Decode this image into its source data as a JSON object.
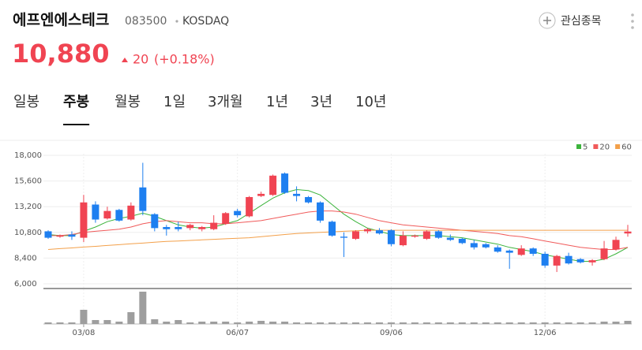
{
  "header": {
    "title": "에프엔에스테크",
    "code": "083500",
    "market": "KOSDAQ",
    "watch_button": "관심종목"
  },
  "price": {
    "value": "10,880",
    "change": "20",
    "change_pct": "(+0.18%)"
  },
  "tabs": [
    "일봉",
    "주봉",
    "월봉",
    "1일",
    "3개월",
    "1년",
    "3년",
    "10년"
  ],
  "active_tab": 1,
  "chart_data": {
    "type": "candlestick",
    "categories": [
      null,
      null,
      null,
      "03/08",
      null,
      null,
      null,
      null,
      null,
      null,
      null,
      null,
      null,
      null,
      null,
      null,
      "06/07",
      null,
      null,
      null,
      null,
      null,
      null,
      null,
      null,
      null,
      null,
      null,
      null,
      "09/06",
      null,
      null,
      null,
      null,
      null,
      null,
      null,
      null,
      null,
      null,
      null,
      null,
      "12/06",
      null,
      null,
      null,
      null,
      null,
      null,
      null
    ],
    "open": [
      10900,
      10400,
      10600,
      10300,
      13400,
      12100,
      12900,
      12000,
      15000,
      12500,
      11300,
      11300,
      11200,
      11100,
      11100,
      11600,
      12800,
      12300,
      14200,
      14300,
      16300,
      14400,
      14100,
      13600,
      11800,
      10400,
      10200,
      10900,
      11000,
      11000,
      9600,
      10400,
      10200,
      10900,
      10300,
      10200,
      9800,
      9700,
      9400,
      9100,
      8700,
      9300,
      8800,
      7700,
      8600,
      8300,
      8000,
      8300,
      9200,
      10700
    ],
    "close": [
      10300,
      10500,
      10400,
      13600,
      12000,
      12800,
      11900,
      13300,
      12800,
      11200,
      11100,
      11100,
      11500,
      11300,
      11700,
      12600,
      12400,
      14100,
      14400,
      16100,
      14500,
      14200,
      13600,
      11900,
      10500,
      10300,
      10900,
      11100,
      10700,
      9700,
      10500,
      10500,
      10900,
      10300,
      10100,
      9800,
      9400,
      9400,
      9000,
      8900,
      9300,
      8800,
      7700,
      8600,
      7900,
      8000,
      8200,
      9300,
      10100,
      10880
    ],
    "high": [
      11000,
      10600,
      10900,
      14300,
      13700,
      13200,
      13000,
      13600,
      17300,
      12600,
      11500,
      11800,
      11600,
      11400,
      12400,
      12700,
      13000,
      14200,
      14600,
      16200,
      16400,
      15100,
      14200,
      13700,
      11900,
      10800,
      11000,
      11200,
      11200,
      11100,
      10900,
      10600,
      11000,
      11000,
      10600,
      10300,
      10100,
      9800,
      9600,
      9200,
      9600,
      9400,
      9000,
      8700,
      8900,
      8400,
      8300,
      10000,
      10400,
      11500
    ],
    "low": [
      10200,
      10300,
      10100,
      9900,
      11700,
      12000,
      11800,
      11900,
      12400,
      10900,
      10500,
      10900,
      11000,
      10900,
      11000,
      11500,
      12200,
      12200,
      14100,
      14200,
      14400,
      13700,
      13500,
      11700,
      10400,
      8500,
      10100,
      10700,
      10600,
      9500,
      9500,
      10300,
      10100,
      10200,
      10000,
      9700,
      9200,
      9300,
      8900,
      7400,
      8600,
      8600,
      7500,
      7100,
      7800,
      7900,
      7700,
      8200,
      9100,
      10400
    ],
    "volume": {
      "color": "#9e9e9e",
      "values": [
        2,
        2,
        2,
        18,
        5,
        5,
        3,
        15,
        41,
        6,
        3,
        5,
        2,
        3,
        3,
        3,
        2,
        3,
        4,
        3,
        3,
        2,
        2,
        2,
        2,
        2,
        2,
        2,
        2,
        2,
        2,
        2,
        2,
        2,
        2,
        2,
        2,
        2,
        2,
        2,
        2,
        2,
        2,
        2,
        2,
        2,
        2,
        3,
        3,
        4
      ]
    },
    "up_color": "#f04452",
    "down_color": "#1e7ff0",
    "series": [
      {
        "name": "5",
        "color": "#3cb43c",
        "values": [
          10600,
          10500,
          10500,
          10900,
          11300,
          11800,
          12100,
          12300,
          12600,
          12300,
          11900,
          11500,
          11300,
          11200,
          11300,
          11600,
          11900,
          12600,
          13300,
          14000,
          14500,
          14800,
          14700,
          14300,
          13400,
          12500,
          11800,
          11200,
          10900,
          10600,
          10500,
          10500,
          10500,
          10500,
          10400,
          10300,
          10100,
          9900,
          9700,
          9400,
          9200,
          9000,
          8700,
          8500,
          8300,
          8100,
          8100,
          8300,
          8800,
          9400
        ]
      },
      {
        "name": "20",
        "color": "#f05a5a",
        "values": [
          10500,
          10500,
          10600,
          10800,
          10900,
          11000,
          11100,
          11300,
          11600,
          11800,
          11900,
          11800,
          11700,
          11700,
          11600,
          11600,
          11700,
          11800,
          11900,
          12100,
          12300,
          12500,
          12700,
          12800,
          12800,
          12700,
          12500,
          12200,
          11900,
          11700,
          11500,
          11400,
          11300,
          11200,
          11100,
          11000,
          10900,
          10800,
          10700,
          10500,
          10400,
          10200,
          10000,
          9800,
          9600,
          9400,
          9300,
          9200,
          9200,
          9400
        ]
      },
      {
        "name": "60",
        "color": "#f3a04a",
        "values": [
          9200,
          9280,
          9350,
          9430,
          9500,
          9580,
          9650,
          9730,
          9800,
          9880,
          9950,
          10000,
          10050,
          10100,
          10150,
          10200,
          10250,
          10300,
          10400,
          10500,
          10600,
          10700,
          10750,
          10800,
          10850,
          10900,
          10950,
          11000,
          11000,
          11000,
          11000,
          11000,
          11000,
          11000,
          11000,
          11000,
          11000,
          11000,
          11000,
          11000,
          11000,
          11000,
          11000,
          11000,
          11000,
          11000,
          11000,
          11000,
          11000,
          11000
        ]
      }
    ],
    "ylim": [
      6000,
      18000
    ],
    "yticks": [
      {
        "value": 6000,
        "label": "6,000"
      },
      {
        "value": 8400,
        "label": "8,400"
      },
      {
        "value": 10800,
        "label": "10,800"
      },
      {
        "value": 13200,
        "label": "13,200"
      },
      {
        "value": 15600,
        "label": "15,600"
      },
      {
        "value": 18000,
        "label": "18,000"
      }
    ],
    "grid": true
  }
}
